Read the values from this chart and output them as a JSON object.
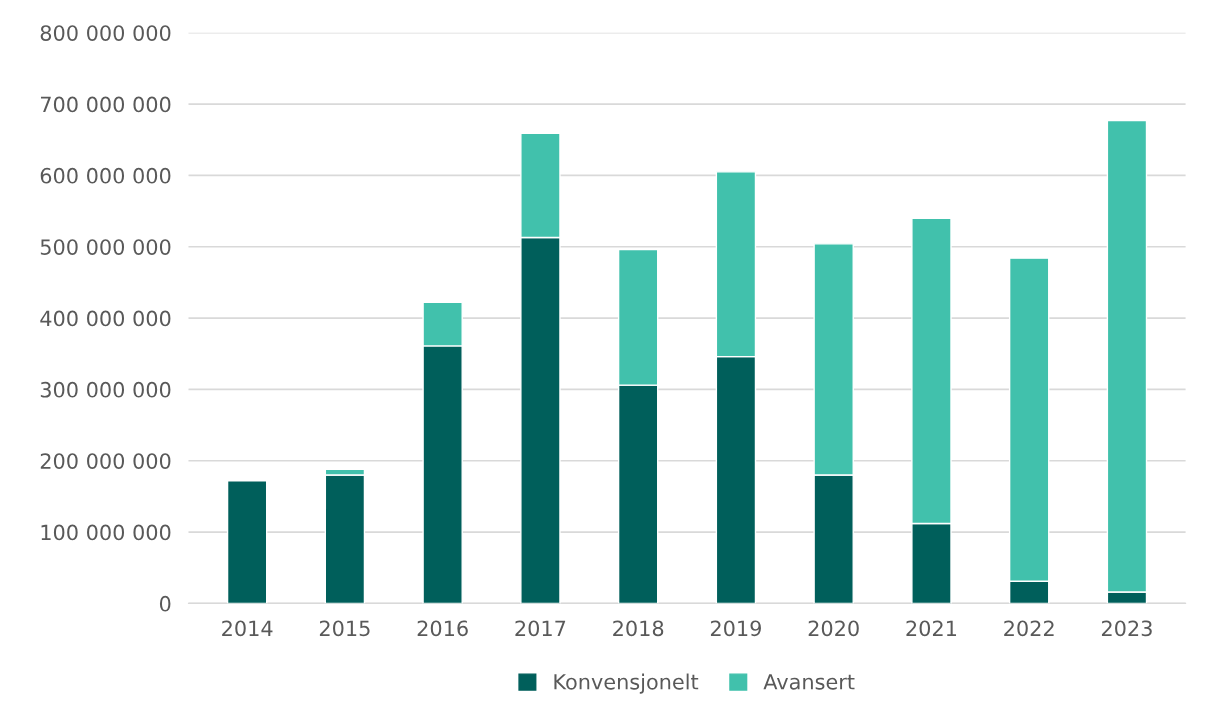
{
  "chart_data": {
    "type": "bar",
    "stacked": true,
    "categories": [
      "2014",
      "2015",
      "2016",
      "2017",
      "2018",
      "2019",
      "2020",
      "2021",
      "2022",
      "2023"
    ],
    "series": [
      {
        "name": "Konvensjonelt",
        "color": "#005f5b",
        "values": [
          172000000,
          180000000,
          361000000,
          513000000,
          306000000,
          346000000,
          180000000,
          112000000,
          31000000,
          16000000
        ]
      },
      {
        "name": "Avansert",
        "color": "#41c1ac",
        "values": [
          null,
          8000000,
          61000000,
          146000000,
          190000000,
          259000000,
          324000000,
          428000000,
          453000000,
          661000000
        ]
      }
    ],
    "ylim": [
      0,
      800000000
    ],
    "yticks": [
      {
        "value": 0,
        "label": "0"
      },
      {
        "value": 100000000,
        "label": "100 000 000"
      },
      {
        "value": 200000000,
        "label": "200 000 000"
      },
      {
        "value": 300000000,
        "label": "300 000 000"
      },
      {
        "value": 400000000,
        "label": "400 000 000"
      },
      {
        "value": 500000000,
        "label": "500 000 000"
      },
      {
        "value": 600000000,
        "label": "600 000 000"
      },
      {
        "value": 700000000,
        "label": "700 000 000"
      },
      {
        "value": 800000000,
        "label": "800 000 000"
      }
    ],
    "grid": "y",
    "legend": "bottom"
  }
}
